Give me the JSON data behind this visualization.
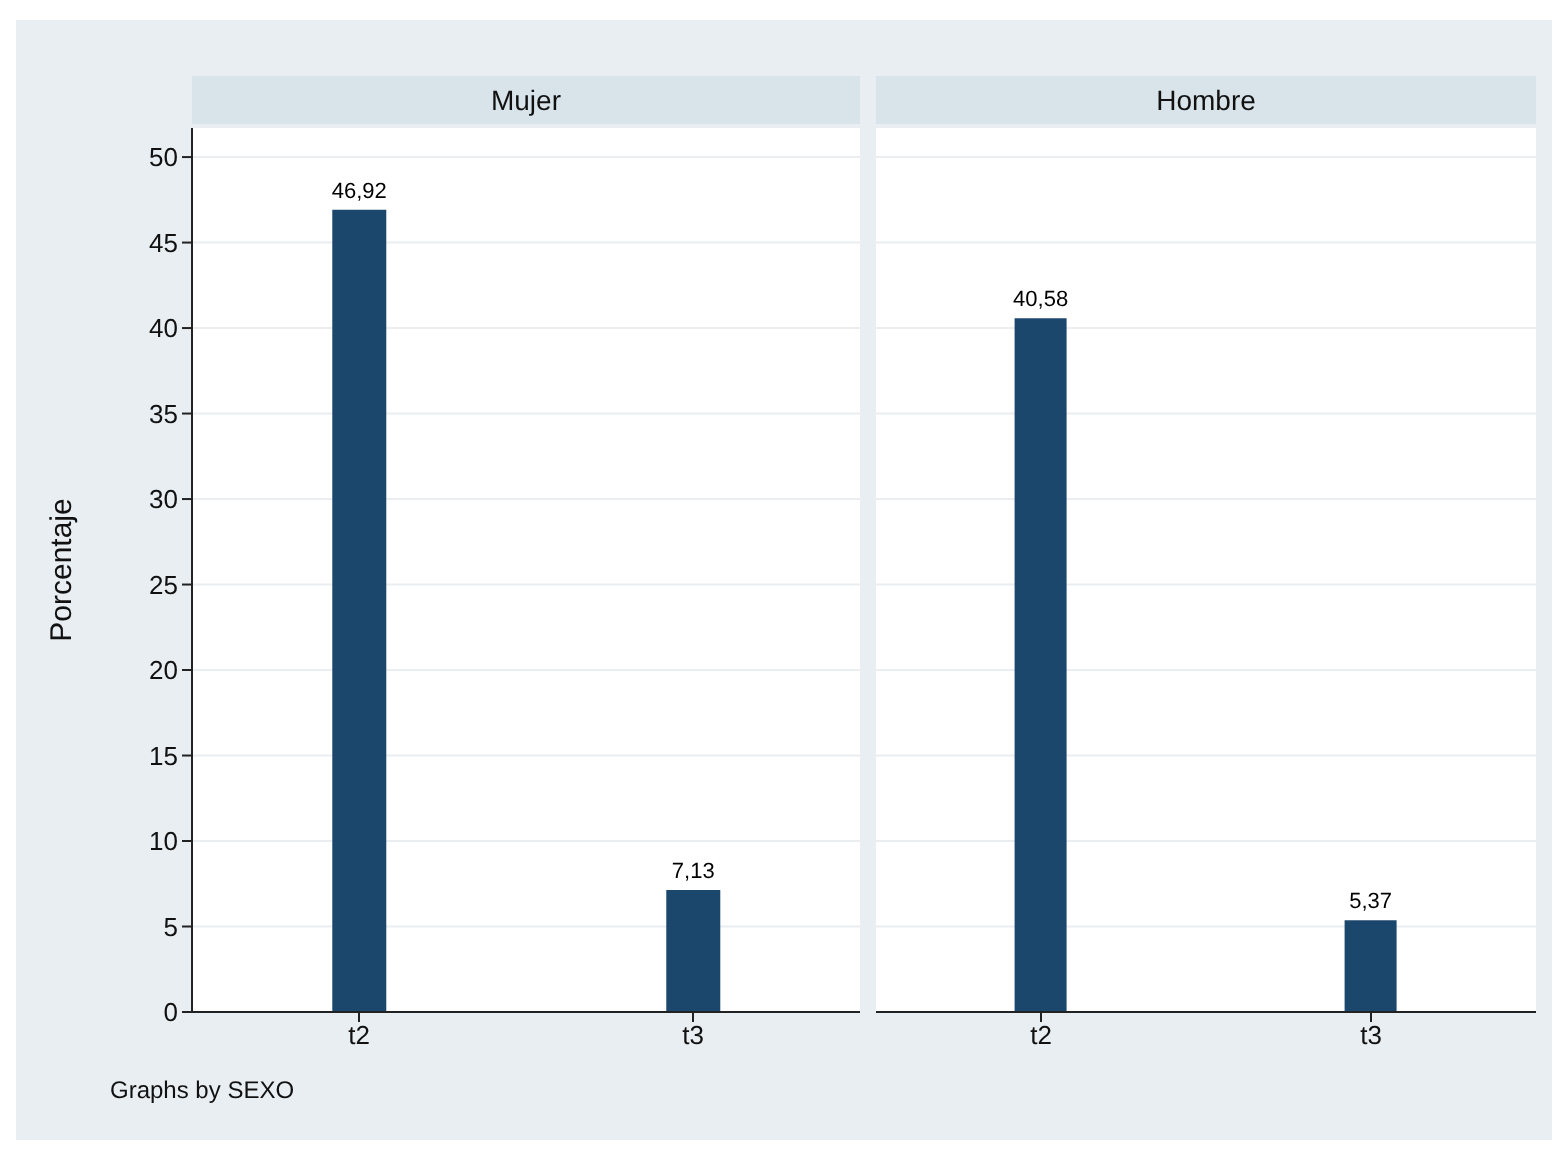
{
  "chart_data": [
    {
      "type": "bar",
      "title": "Mujer",
      "ylabel": "Porcentaje",
      "categories": [
        "t2",
        "t3"
      ],
      "values": [
        46.92,
        7.13
      ],
      "value_labels": [
        "46,92",
        "7,13"
      ],
      "color": "#1c476d",
      "ylim": [
        0,
        51.7
      ],
      "yticks": [
        0,
        5,
        10,
        15,
        20,
        25,
        30,
        35,
        40,
        45,
        50
      ],
      "grid": "y",
      "annotations": [
        "Graphs by SEXO"
      ]
    },
    {
      "type": "bar",
      "title": "Hombre",
      "categories": [
        "t2",
        "t3"
      ],
      "values": [
        40.58,
        5.37
      ],
      "value_labels": [
        "40,58",
        "5,37"
      ],
      "color": "#1c476d",
      "ylim": [
        0,
        51.7
      ],
      "yticks": [
        0,
        5,
        10,
        15,
        20,
        25,
        30,
        35,
        40,
        45,
        50
      ],
      "grid": "y",
      "tick_labels": "x"
    }
  ]
}
